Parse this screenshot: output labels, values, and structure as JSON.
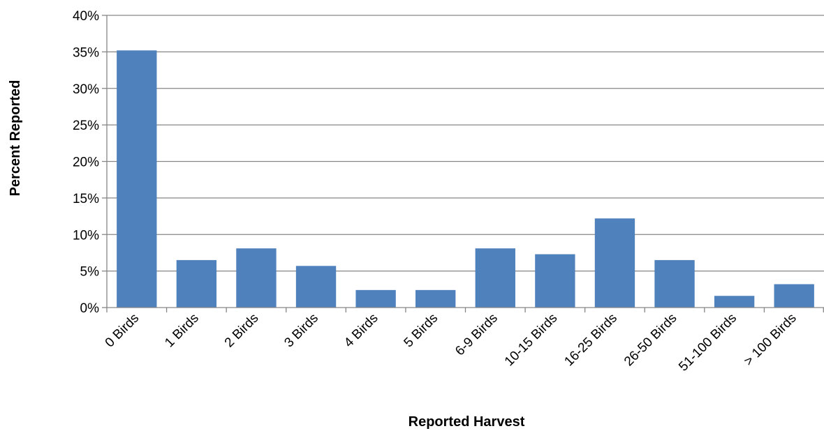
{
  "chart_data": {
    "type": "bar",
    "title": "",
    "xlabel": "Reported Harvest",
    "ylabel": "Percent Reported",
    "categories": [
      "0 Birds",
      "1 Birds",
      "2 Birds",
      "3 Birds",
      "4 Birds",
      "5 Birds",
      "6-9 Birds",
      "10-15 Birds",
      "16-25 Birds",
      "26-50 Birds",
      "51-100 Birds",
      "> 100 Birds"
    ],
    "values": [
      35.2,
      6.5,
      8.1,
      5.7,
      2.4,
      2.4,
      8.1,
      7.3,
      12.2,
      6.5,
      1.6,
      3.2
    ],
    "value_format": "percent",
    "ylim": [
      0,
      40
    ],
    "yticks": [
      0,
      5,
      10,
      15,
      20,
      25,
      30,
      35,
      40
    ],
    "ytick_labels": [
      "0%",
      "5%",
      "10%",
      "15%",
      "20%",
      "25%",
      "30%",
      "35%",
      "40%"
    ],
    "grid": true,
    "legend": "none",
    "colors": {
      "bar": "#4F81BD",
      "gridline": "#868686",
      "axis": "#868686",
      "text": "#000000"
    }
  }
}
